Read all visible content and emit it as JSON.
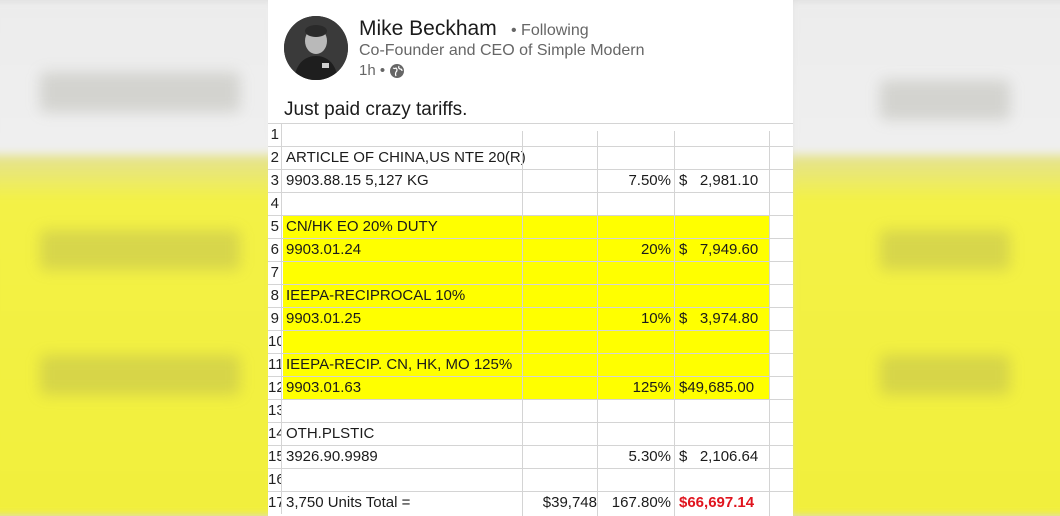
{
  "post": {
    "author_name": "Mike Beckham",
    "following_label": "• Following",
    "author_title": "Co-Founder and CEO of Simple Modern",
    "time_label": "1h •",
    "globe_icon": "globe-icon",
    "text": "Just paid crazy tariffs."
  },
  "sheet": {
    "rows": [
      {
        "num": "1",
        "desc": "",
        "col3": "",
        "rate": "",
        "amount": "",
        "yellow": false
      },
      {
        "num": "2",
        "desc": "ARTICLE OF CHINA,US NTE 20(R)",
        "col3": "",
        "rate": "",
        "amount": "",
        "yellow": false
      },
      {
        "num": "3",
        "desc": "9903.88.15 5,127 KG",
        "col3": "",
        "rate": "7.50%",
        "amount": "$   2,981.10",
        "yellow": false
      },
      {
        "num": "4",
        "desc": "",
        "col3": "",
        "rate": "",
        "amount": "",
        "yellow": false
      },
      {
        "num": "5",
        "desc": "CN/HK EO 20% DUTY",
        "col3": "",
        "rate": "",
        "amount": "",
        "yellow": true
      },
      {
        "num": "6",
        "desc": "9903.01.24",
        "col3": "",
        "rate": "20%",
        "amount": "$   7,949.60",
        "yellow": true
      },
      {
        "num": "7",
        "desc": "",
        "col3": "",
        "rate": "",
        "amount": "",
        "yellow": true
      },
      {
        "num": "8",
        "desc": "IEEPA-RECIPROCAL 10%",
        "col3": "",
        "rate": "",
        "amount": "",
        "yellow": true
      },
      {
        "num": "9",
        "desc": "9903.01.25",
        "col3": "",
        "rate": "10%",
        "amount": "$   3,974.80",
        "yellow": true
      },
      {
        "num": "10",
        "desc": "",
        "col3": "",
        "rate": "",
        "amount": "",
        "yellow": true
      },
      {
        "num": "11",
        "desc": "IEEPA-RECIP. CN, HK, MO 125%",
        "col3": "",
        "rate": "",
        "amount": "",
        "yellow": true
      },
      {
        "num": "12",
        "desc": "9903.01.63",
        "col3": "",
        "rate": "125%",
        "amount": "$49,685.00",
        "yellow": true
      },
      {
        "num": "13",
        "desc": "",
        "col3": "",
        "rate": "",
        "amount": "",
        "yellow": false
      },
      {
        "num": "14",
        "desc": "OTH.PLSTIC",
        "col3": "",
        "rate": "",
        "amount": "",
        "yellow": false
      },
      {
        "num": "15",
        "desc": "3926.90.9989",
        "col3": "",
        "rate": "5.30%",
        "amount": "$   2,106.64",
        "yellow": false
      },
      {
        "num": "16",
        "desc": "",
        "col3": "",
        "rate": "",
        "amount": "",
        "yellow": false
      },
      {
        "num": "17",
        "desc": "3,750 Units Total =",
        "col3": "$39,748",
        "rate": "167.80%",
        "amount": "$66,697.14",
        "yellow": false,
        "total": true
      }
    ],
    "total_color": "#e0141e",
    "highlight_color": "#ffff00"
  }
}
